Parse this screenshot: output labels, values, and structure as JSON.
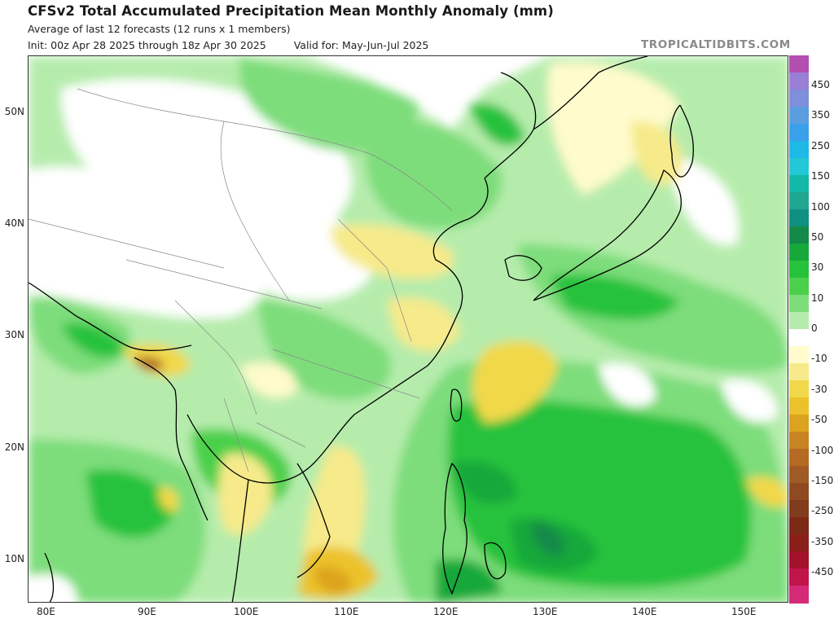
{
  "header": {
    "title": "CFSv2 Total Accumulated Precipitation Mean Monthly Anomaly (mm)",
    "subtitle": "Average of last 12 forecasts (12 runs x 1 members)",
    "init": "Init: 00z Apr 28 2025 through 18z Apr 30 2025",
    "valid": "Valid for: May-Jun-Jul 2025",
    "brand": "TROPICALTIDBITS.COM"
  },
  "map": {
    "lat_labels": [
      "50N",
      "40N",
      "30N",
      "20N",
      "10N"
    ],
    "lon_labels": [
      "80E",
      "90E",
      "100E",
      "110E",
      "120E",
      "130E",
      "140E",
      "150E"
    ]
  },
  "legend": {
    "labels": [
      "450",
      "350",
      "250",
      "150",
      "100",
      "50",
      "30",
      "10",
      "0",
      "-10",
      "-30",
      "-50",
      "-100",
      "-150",
      "-250",
      "-350",
      "-450"
    ],
    "colors": [
      "#b34fb0",
      "#9a7fd6",
      "#7f8fd9",
      "#5a9ee0",
      "#3aa0ea",
      "#1fb9e6",
      "#23c8d6",
      "#14b8a8",
      "#1fa793",
      "#0f9080",
      "#148a4a",
      "#17a83a",
      "#27c23c",
      "#4bd04c",
      "#7ddd7a",
      "#b5ecac",
      "#ffffff",
      "#fffbcc",
      "#f6ea8a",
      "#f1d84a",
      "#ecc22c",
      "#dca31e",
      "#c88420",
      "#b46a23",
      "#a05a25",
      "#904a22",
      "#813c1d",
      "#7c2a16",
      "#8a1f1a",
      "#a3122a",
      "#c0144a",
      "#d52a76"
    ]
  }
}
